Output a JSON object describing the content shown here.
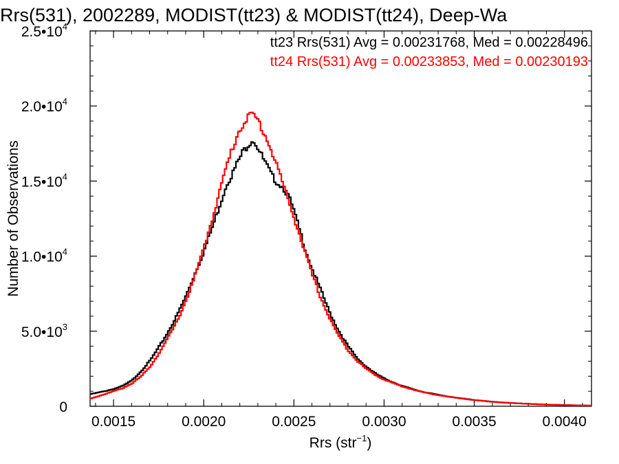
{
  "chart_data": {
    "type": "line",
    "title": "Rrs(531), 2002289, MODIST(tt23) & MODIST(tt24), Deep-Wa",
    "xlabel": {
      "base": "Rrs (str",
      "sup": "−1",
      "end": ")"
    },
    "ylabel": "Number of Observations",
    "xlim": [
      0.00137,
      0.00415
    ],
    "ylim": [
      0,
      25000
    ],
    "xticks": [
      {
        "value": 0.0015,
        "label": "0.0015"
      },
      {
        "value": 0.002,
        "label": "0.0020"
      },
      {
        "value": 0.0025,
        "label": "0.0025"
      },
      {
        "value": 0.003,
        "label": "0.0030"
      },
      {
        "value": 0.0035,
        "label": "0.0035"
      },
      {
        "value": 0.004,
        "label": "0.0040"
      }
    ],
    "yticks": [
      {
        "value": 0,
        "mant": "0",
        "exp": ""
      },
      {
        "value": 5000,
        "mant": "5.0•10",
        "exp": "3"
      },
      {
        "value": 10000,
        "mant": "1.0•10",
        "exp": "4"
      },
      {
        "value": 15000,
        "mant": "1.5•10",
        "exp": "4"
      },
      {
        "value": 20000,
        "mant": "2.0•10",
        "exp": "4"
      },
      {
        "value": 25000,
        "mant": "2.5•10",
        "exp": "4"
      }
    ],
    "grid": false,
    "legend_position": "top-right",
    "series": [
      {
        "name": "tt23",
        "label": "tt23 Rrs(531) Avg = 0.00231768, Med = 0.00228496",
        "color": "#000000",
        "x": [
          0.00137,
          0.00145,
          0.0015,
          0.00155,
          0.0016,
          0.00165,
          0.0017,
          0.00175,
          0.0018,
          0.00185,
          0.0019,
          0.00195,
          0.002,
          0.00205,
          0.0021,
          0.00213,
          0.00216,
          0.00219,
          0.00222,
          0.00225,
          0.00227,
          0.00229,
          0.00232,
          0.00235,
          0.00238,
          0.00241,
          0.00244,
          0.00247,
          0.0025,
          0.00253,
          0.00256,
          0.0026,
          0.00265,
          0.0027,
          0.00275,
          0.0028,
          0.00285,
          0.0029,
          0.00295,
          0.003,
          0.0031,
          0.0032,
          0.0033,
          0.0034,
          0.0035,
          0.0036,
          0.0037,
          0.0038,
          0.0039,
          0.004,
          0.00415
        ],
        "y": [
          800,
          1000,
          1150,
          1350,
          1700,
          2300,
          3000,
          3900,
          4900,
          6000,
          7300,
          8800,
          10300,
          12000,
          13800,
          14900,
          15500,
          16300,
          17000,
          17500,
          17800,
          17500,
          16700,
          16000,
          15300,
          14900,
          14600,
          14000,
          13000,
          11800,
          10600,
          9200,
          7700,
          6200,
          5000,
          4000,
          3200,
          2650,
          2200,
          1850,
          1350,
          1000,
          760,
          570,
          420,
          300,
          220,
          160,
          110,
          80,
          40
        ]
      },
      {
        "name": "tt24",
        "label": "tt24 Rrs(531) Avg = 0.00233853, Med = 0.00230193",
        "color": "#ff0000",
        "x": [
          0.00137,
          0.00145,
          0.0015,
          0.00155,
          0.0016,
          0.00165,
          0.0017,
          0.00175,
          0.0018,
          0.00185,
          0.0019,
          0.00195,
          0.002,
          0.00205,
          0.0021,
          0.00213,
          0.00216,
          0.00219,
          0.00222,
          0.00225,
          0.00227,
          0.00229,
          0.00232,
          0.00235,
          0.00238,
          0.00241,
          0.00244,
          0.00247,
          0.0025,
          0.00253,
          0.00256,
          0.0026,
          0.00265,
          0.0027,
          0.00275,
          0.0028,
          0.00285,
          0.0029,
          0.00295,
          0.003,
          0.0031,
          0.0032,
          0.0033,
          0.0034,
          0.0035,
          0.0036,
          0.0037,
          0.0038,
          0.0039,
          0.004,
          0.00415
        ],
        "y": [
          500,
          800,
          1000,
          1200,
          1500,
          1950,
          2600,
          3500,
          4500,
          5600,
          7000,
          8600,
          10500,
          12600,
          14800,
          16100,
          17200,
          18200,
          18900,
          19300,
          19400,
          19200,
          18600,
          17800,
          16900,
          15900,
          14800,
          13700,
          12600,
          11500,
          10300,
          8800,
          7200,
          5800,
          4650,
          3750,
          3050,
          2500,
          2100,
          1780,
          1320,
          980,
          740,
          560,
          410,
          300,
          220,
          160,
          110,
          80,
          40
        ]
      }
    ]
  }
}
